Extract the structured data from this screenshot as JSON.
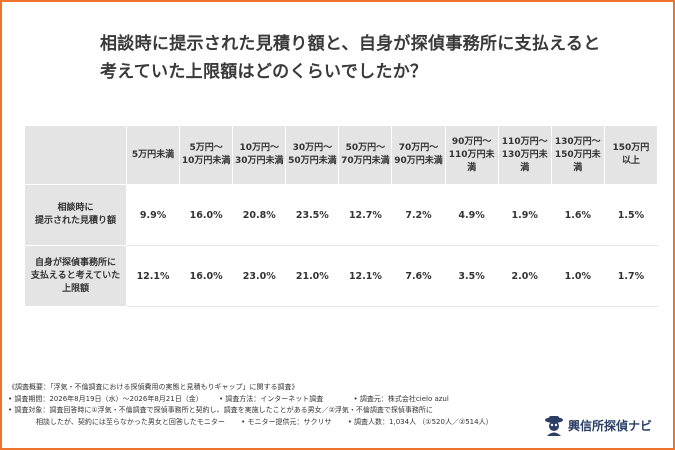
{
  "title": {
    "line1": "相談時に提示された見積り額と、自身が探偵事務所に支払えると",
    "line2": "考えていた上限額はどのくらいでしたか？"
  },
  "table": {
    "columns": [
      [
        "5万円未満"
      ],
      [
        "5万円～",
        "10万円未満"
      ],
      [
        "10万円～",
        "30万円未満"
      ],
      [
        "30万円～",
        "50万円未満"
      ],
      [
        "50万円～",
        "70万円未満"
      ],
      [
        "70万円～",
        "90万円未満"
      ],
      [
        "90万円～",
        "110万円未満"
      ],
      [
        "110万円～",
        "130万円未満"
      ],
      [
        "130万円～",
        "150万円未満"
      ],
      [
        "150万円",
        "以上"
      ]
    ],
    "rows": [
      {
        "label": [
          "相談時に",
          "提示された見積り額"
        ],
        "values": [
          "9.9%",
          "16.0%",
          "20.8%",
          "23.5%",
          "12.7%",
          "7.2%",
          "4.9%",
          "1.9%",
          "1.6%",
          "1.5%"
        ]
      },
      {
        "label": [
          "自身が探偵事務所に",
          "支払えると考えていた",
          "上限額"
        ],
        "values": [
          "12.1%",
          "16.0%",
          "23.0%",
          "21.0%",
          "12.1%",
          "7.6%",
          "3.5%",
          "2.0%",
          "1.0%",
          "1.7%"
        ]
      }
    ]
  },
  "footer": {
    "overview": "《調査概要：「浮気・不倫調査における探偵費用の実態と見積もりギャップ」に関する調査》",
    "period": "• 調査期間：2026年8月19日（水）～2026年8月21日（金）",
    "method": "• 調査方法：インターネット調査",
    "organizer": "• 調査元：株式会社cielo azul",
    "target1": "• 調査対象：調査回答時に①浮気・不倫調査で探偵事務所と契約し、調査を実施したことがある男女／②浮気・不倫調査で探偵事務所に",
    "target2": "相談したが、契約には至らなかった男女と回答したモニター",
    "monitor": "• モニター提供元：サクリサ",
    "count": "• 調査人数：1,034人 （①520人／②514人）"
  },
  "logo": {
    "text": "興信所探偵ナビ",
    "icon": "detective-mascot-icon",
    "color": "#2b3f66"
  },
  "colors": {
    "border": "#f0732d",
    "header_bg": "#e4e4e4"
  }
}
